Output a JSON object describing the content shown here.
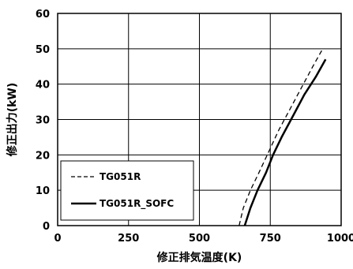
{
  "chart_data": {
    "type": "line",
    "title": "",
    "xlabel": "修正排気温度(K)",
    "ylabel": "修正出力(kW)",
    "xlim": [
      0,
      1000
    ],
    "ylim": [
      0,
      60
    ],
    "x_ticks": [
      "0",
      "250",
      "500",
      "750",
      "1000"
    ],
    "y_ticks": [
      "0",
      "10",
      "20",
      "30",
      "40",
      "50",
      "60"
    ],
    "grid": true,
    "legend_position": "bottom-left",
    "series": [
      {
        "name": "TG051R",
        "style": "dashed",
        "color": "#000000",
        "x": [
          640,
          655,
          680,
          710,
          745,
          780,
          820,
          860,
          900,
          935
        ],
        "y": [
          0,
          5,
          10,
          15,
          21,
          27,
          33,
          39,
          45,
          50
        ]
      },
      {
        "name": "TG051R_SOFC",
        "style": "solid",
        "color": "#000000",
        "x": [
          660,
          680,
          705,
          735,
          760,
          790,
          830,
          870,
          910,
          945
        ],
        "y": [
          0,
          5,
          10,
          15,
          20,
          25,
          31,
          37,
          42,
          47
        ]
      }
    ]
  }
}
